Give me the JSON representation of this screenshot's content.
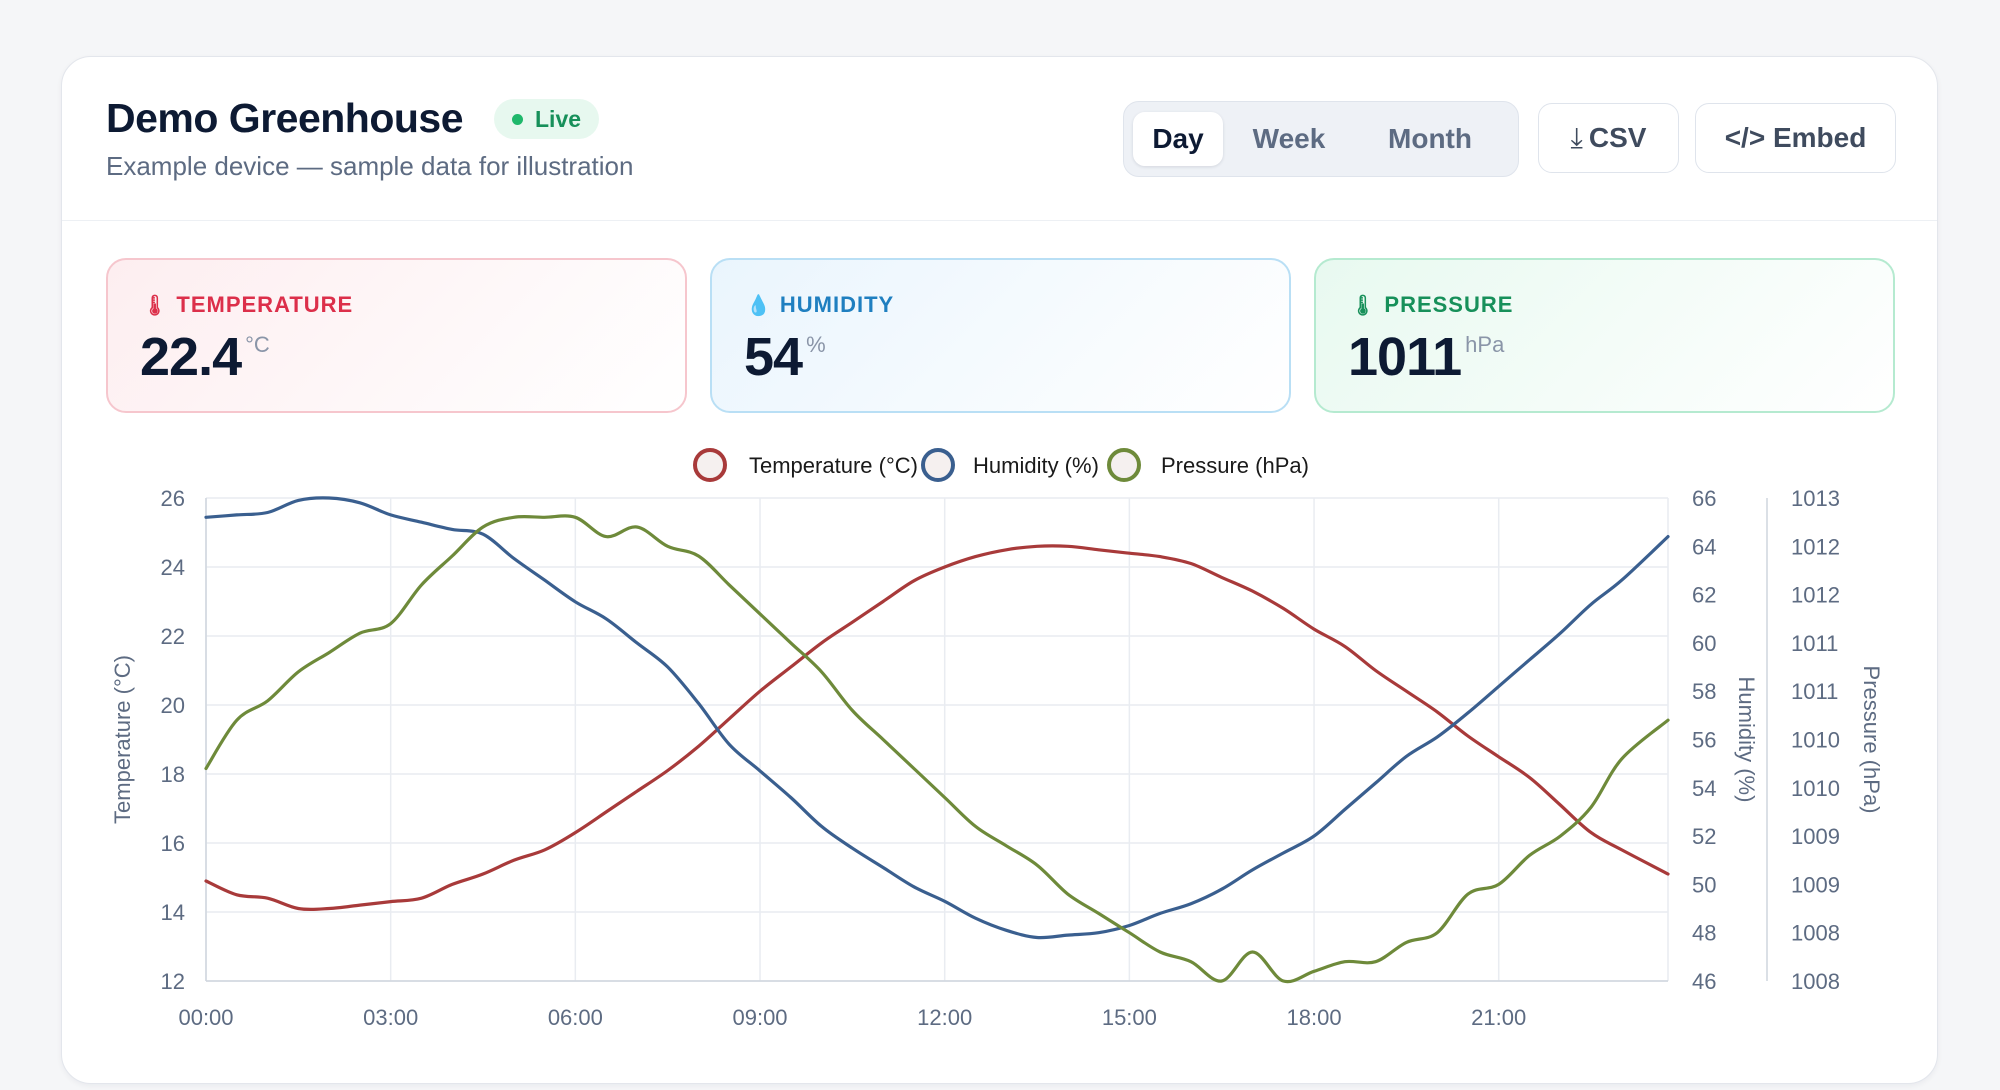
{
  "device": {
    "title": "Demo Greenhouse",
    "status": "Live",
    "subtitle": "Example device — sample data for illustration"
  },
  "range_tabs": [
    {
      "label": "Day",
      "active": true
    },
    {
      "label": "Week",
      "active": false
    },
    {
      "label": "Month",
      "active": false
    }
  ],
  "actions": {
    "csv": {
      "icon": "download-icon",
      "glyph": "⤓",
      "label": "CSV"
    },
    "embed": {
      "label": "</> Embed"
    }
  },
  "metrics": {
    "temperature": {
      "icon": "thermometer-icon",
      "glyph": "🌡",
      "label": "TEMPERATURE",
      "value": "22.4",
      "unit": "°C",
      "color": "#dc2f4a"
    },
    "humidity": {
      "icon": "droplet-icon",
      "glyph": "💧",
      "label": "HUMIDITY",
      "value": "54",
      "unit": "%",
      "color": "#1f7fc0"
    },
    "pressure": {
      "icon": "gauge-icon",
      "glyph": "🌡",
      "label": "PRESSURE",
      "value": "1011",
      "unit": "hPa",
      "color": "#17905a"
    }
  },
  "chart_data": {
    "type": "line",
    "legend_placement": "top-center",
    "grid": true,
    "x_ticks": [
      "00:00",
      "03:00",
      "06:00",
      "09:00",
      "12:00",
      "15:00",
      "18:00",
      "21:00"
    ],
    "x_range_hours": [
      0,
      23.75
    ],
    "y_left": {
      "label": "Temperature (°C)",
      "ylim": [
        12,
        26
      ],
      "ticks": [
        "26",
        "24",
        "22",
        "20",
        "18",
        "16",
        "14",
        "12"
      ]
    },
    "y_right1": {
      "label": "Humidity (%)",
      "ylim": [
        46,
        66
      ],
      "ticks": [
        "66",
        "64",
        "62",
        "60",
        "58",
        "56",
        "54",
        "52",
        "50",
        "48",
        "46"
      ]
    },
    "y_right2": {
      "label": "Pressure (hPa)",
      "ylim": [
        1008,
        1013
      ],
      "ticks": [
        "1013",
        "1012",
        "1012",
        "1011",
        "1011",
        "1010",
        "1010",
        "1009",
        "1009",
        "1008",
        "1008"
      ]
    },
    "series": [
      {
        "name": "Temperature (°C)",
        "axis": "y_left",
        "color": "#a83a3a",
        "x": [
          0,
          0.5,
          1,
          1.5,
          2,
          2.5,
          3,
          3.5,
          4,
          4.5,
          5,
          5.5,
          6,
          6.5,
          7,
          7.5,
          8,
          8.5,
          9,
          9.5,
          10,
          10.5,
          11,
          11.5,
          12,
          12.5,
          13,
          13.5,
          14,
          14.5,
          15,
          15.5,
          16,
          16.5,
          17,
          17.5,
          18,
          18.5,
          19,
          19.5,
          20,
          20.5,
          21,
          21.5,
          22,
          22.5,
          23,
          23.75
        ],
        "values": [
          14.9,
          14.5,
          14.4,
          14.1,
          14.1,
          14.2,
          14.3,
          14.4,
          14.8,
          15.1,
          15.5,
          15.8,
          16.3,
          16.9,
          17.5,
          18.1,
          18.8,
          19.6,
          20.4,
          21.1,
          21.8,
          22.4,
          23.0,
          23.6,
          24.0,
          24.3,
          24.5,
          24.6,
          24.6,
          24.5,
          24.4,
          24.3,
          24.1,
          23.7,
          23.3,
          22.8,
          22.2,
          21.7,
          21.0,
          20.4,
          19.8,
          19.1,
          18.5,
          17.9,
          17.1,
          16.3,
          15.8,
          15.1
        ]
      },
      {
        "name": "Humidity (%)",
        "axis": "y_right1",
        "color": "#3a5f8f",
        "x": [
          0,
          0.5,
          1,
          1.5,
          2,
          2.5,
          3,
          3.5,
          4,
          4.5,
          5,
          5.5,
          6,
          6.5,
          7,
          7.5,
          8,
          8.5,
          9,
          9.5,
          10,
          10.5,
          11,
          11.5,
          12,
          12.5,
          13,
          13.5,
          14,
          14.5,
          15,
          15.5,
          16,
          16.5,
          17,
          17.5,
          18,
          18.5,
          19,
          19.5,
          20,
          20.5,
          21,
          21.5,
          22,
          22.5,
          23,
          23.75
        ],
        "values": [
          65.2,
          65.3,
          65.4,
          65.9,
          66.0,
          65.8,
          65.3,
          65.0,
          64.7,
          64.5,
          63.5,
          62.6,
          61.7,
          61.0,
          60.0,
          59.0,
          57.5,
          55.8,
          54.7,
          53.6,
          52.4,
          51.5,
          50.7,
          49.9,
          49.3,
          48.6,
          48.1,
          47.8,
          47.9,
          48.0,
          48.3,
          48.8,
          49.2,
          49.8,
          50.6,
          51.3,
          52.0,
          53.1,
          54.2,
          55.3,
          56.1,
          57.1,
          58.2,
          59.3,
          60.4,
          61.6,
          62.6,
          64.4
        ]
      },
      {
        "name": "Pressure (hPa)",
        "axis": "y_right2",
        "color": "#6e8a3a",
        "x": [
          0,
          0.5,
          1,
          1.5,
          2,
          2.5,
          3,
          3.5,
          4,
          4.5,
          5,
          5.5,
          6,
          6.5,
          7,
          7.5,
          8,
          8.5,
          9,
          9.5,
          10,
          10.5,
          11,
          11.5,
          12,
          12.5,
          13,
          13.5,
          14,
          14.5,
          15,
          15.5,
          16,
          16.5,
          17,
          17.5,
          18,
          18.5,
          19,
          19.5,
          20,
          20.5,
          21,
          21.5,
          22,
          22.5,
          23,
          23.75
        ],
        "values": [
          1010.2,
          1010.7,
          1010.9,
          1011.2,
          1011.4,
          1011.6,
          1011.7,
          1012.1,
          1012.4,
          1012.7,
          1012.8,
          1012.8,
          1012.8,
          1012.6,
          1012.7,
          1012.5,
          1012.4,
          1012.1,
          1011.8,
          1011.5,
          1011.2,
          1010.8,
          1010.5,
          1010.2,
          1009.9,
          1009.6,
          1009.4,
          1009.2,
          1008.9,
          1008.7,
          1008.5,
          1008.3,
          1008.2,
          1008.0,
          1008.3,
          1008.0,
          1008.1,
          1008.2,
          1008.2,
          1008.4,
          1008.5,
          1008.9,
          1009.0,
          1009.3,
          1009.5,
          1009.8,
          1010.3,
          1010.7
        ]
      }
    ]
  }
}
